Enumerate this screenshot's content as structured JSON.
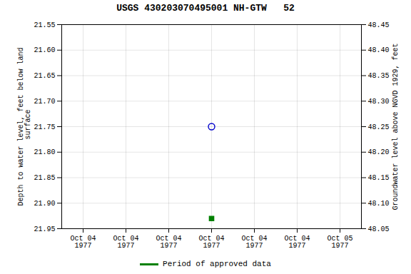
{
  "chart_data": {
    "type": "scatter",
    "title": "USGS 430203070495001 NH-GTW   52",
    "y_label": "Depth to water level, feet below land\n surface",
    "y2_label": "Groundwater level above NGVD 1929, feet",
    "categories": [
      "Oct 04\n1977",
      "Oct 04\n1977",
      "Oct 04\n1977",
      "Oct 04\n1977",
      "Oct 04\n1977",
      "Oct 04\n1977",
      "Oct 05\n1977"
    ],
    "series": [
      {
        "color": "#0000cc",
        "marker": "open_circle",
        "values": [
          null,
          null,
          null,
          21.75,
          null,
          null,
          null
        ]
      },
      {
        "name": "Period of approved data",
        "color": "#008000",
        "marker": "square",
        "values": [
          null,
          null,
          null,
          21.93,
          null,
          null,
          null
        ]
      }
    ],
    "ylim": [
      21.95,
      21.55
    ],
    "yticks": [
      21.55,
      {
        "value": 21.6,
        "label": "21.60"
      },
      21.65,
      {
        "value": 21.7,
        "label": "21.70"
      },
      21.75,
      {
        "value": 21.8,
        "label": "21.80"
      },
      21.85,
      {
        "value": 21.9,
        "label": "21.90"
      },
      21.95
    ],
    "y2lim": [
      48.05,
      48.45
    ],
    "y2ticks": [
      48.45,
      {
        "value": 48.4,
        "label": "48.40"
      },
      48.35,
      {
        "value": 48.3,
        "label": "48.30"
      },
      48.25,
      {
        "value": 48.2,
        "label": "48.20"
      },
      48.15,
      {
        "value": 48.1,
        "label": "48.10"
      },
      48.05
    ],
    "grid": true,
    "legend": "bottom"
  }
}
